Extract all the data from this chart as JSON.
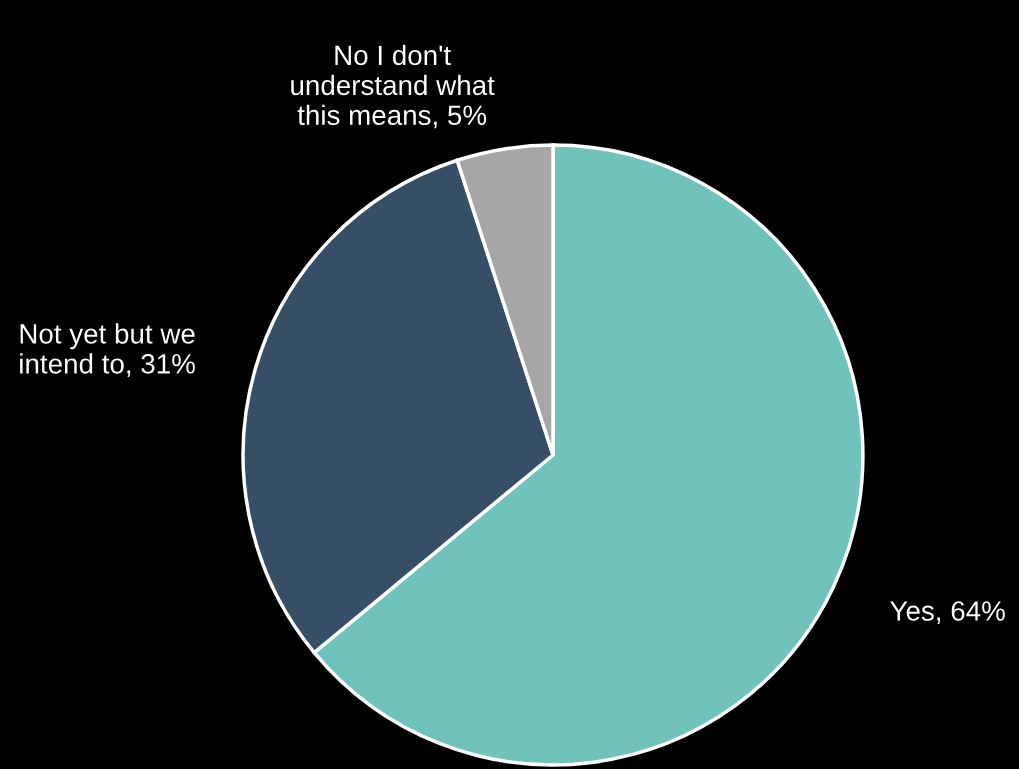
{
  "chart_data": {
    "type": "pie",
    "categories": [
      "Yes, 64%",
      "Not yet but we\nintend to, 31%",
      "No I don't\nunderstand what\nthis means, 5%"
    ],
    "values": [
      64,
      31,
      5
    ],
    "colors": [
      "#6fc3bb",
      "#374f66",
      "#a6a6a6"
    ]
  }
}
